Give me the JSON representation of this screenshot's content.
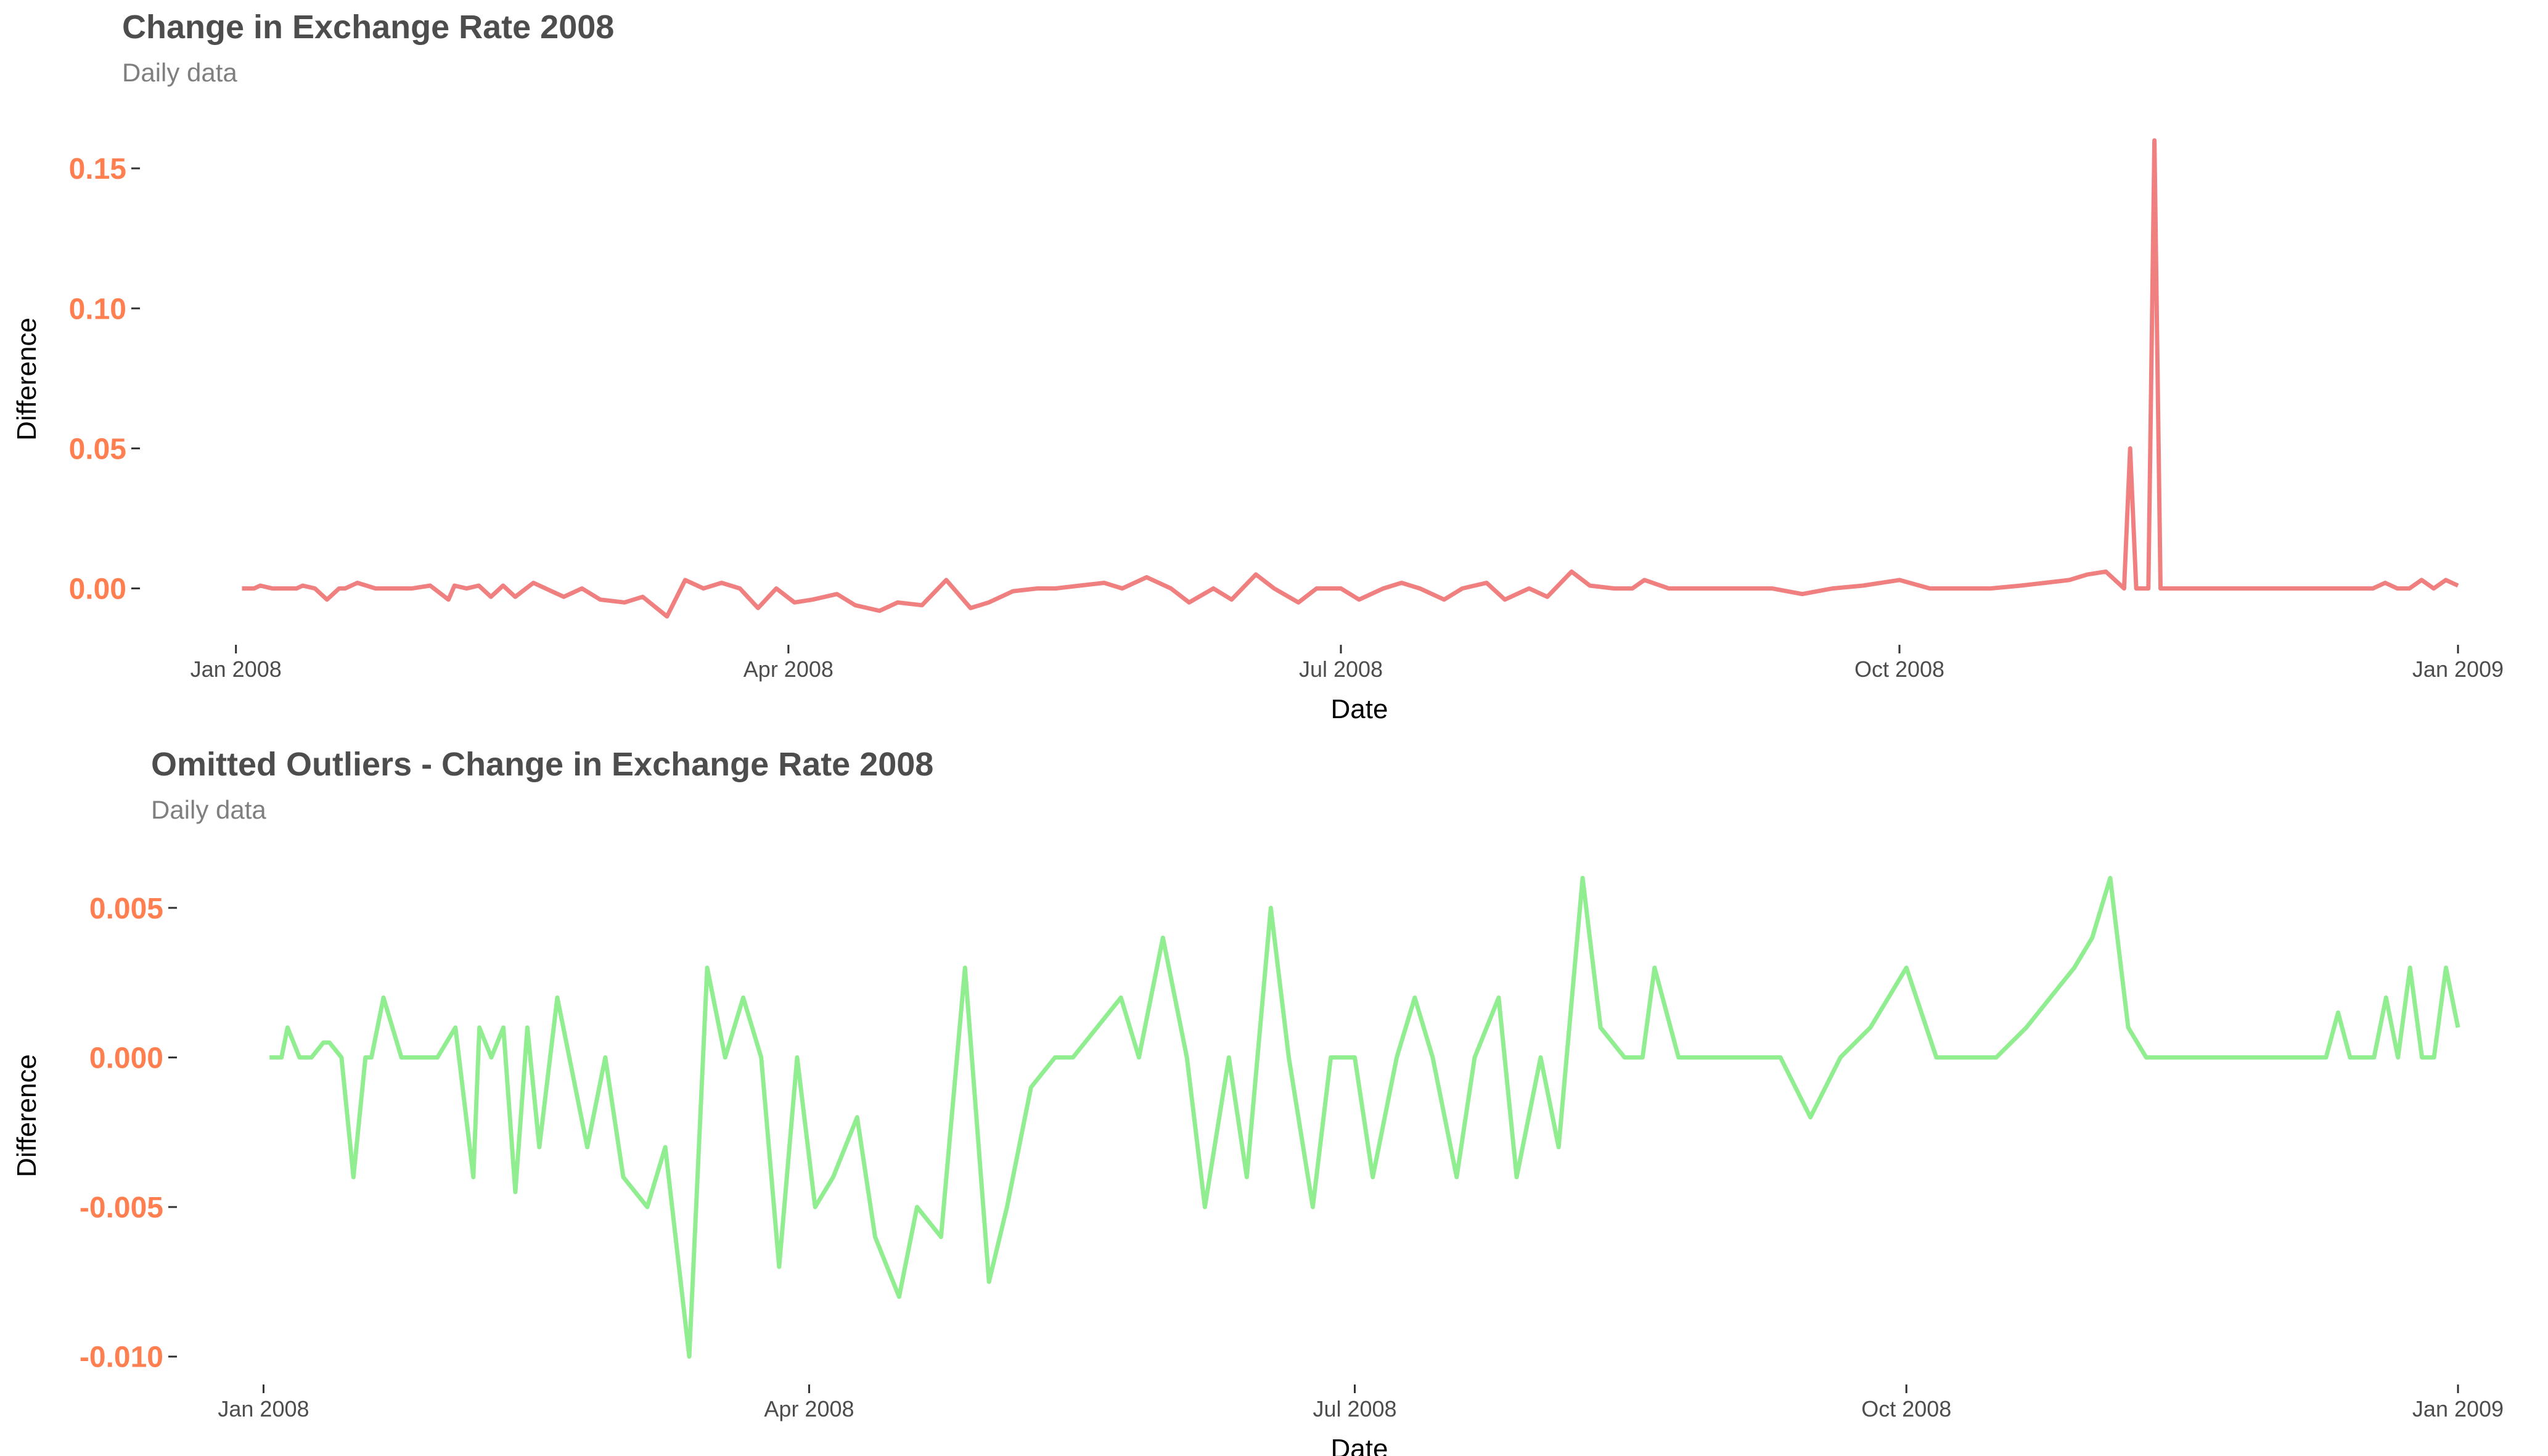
{
  "colors": {
    "tick_label": "#ff7f50",
    "series_top": "#f08080",
    "series_bottom": "#90ee90"
  },
  "chart_data": [
    {
      "type": "line",
      "title": "Change in Exchange Rate 2008",
      "subtitle": "Daily data",
      "xlabel": "Date",
      "ylabel": "Difference",
      "xlim": [
        "2007-12-30",
        "2009-01-01"
      ],
      "ylim": [
        -0.01,
        0.165
      ],
      "yticks": [
        0.0,
        0.05,
        0.1,
        0.15
      ],
      "ytick_labels": [
        "0.00",
        "0.05",
        "0.10",
        "0.15"
      ],
      "xticks": [
        "2008-01-01",
        "2008-04-01",
        "2008-07-01",
        "2008-10-01",
        "2009-01-01"
      ],
      "xtick_labels": [
        "Jan 2008",
        "Apr 2008",
        "Jul 2008",
        "Oct 2008",
        "Jan 2009"
      ],
      "grid": false,
      "series": [
        {
          "x": [
            "2008-01-02",
            "2008-01-04",
            "2008-01-05",
            "2008-01-07",
            "2008-01-09",
            "2008-01-11",
            "2008-01-12",
            "2008-01-14",
            "2008-01-16",
            "2008-01-18",
            "2008-01-19",
            "2008-01-21",
            "2008-01-24",
            "2008-01-27",
            "2008-01-30",
            "2008-02-02",
            "2008-02-05",
            "2008-02-06",
            "2008-02-08",
            "2008-02-10",
            "2008-02-12",
            "2008-02-14",
            "2008-02-16",
            "2008-02-19",
            "2008-02-21",
            "2008-02-24",
            "2008-02-27",
            "2008-03-01",
            "2008-03-05",
            "2008-03-08",
            "2008-03-12",
            "2008-03-15",
            "2008-03-18",
            "2008-03-21",
            "2008-03-24",
            "2008-03-27",
            "2008-03-30",
            "2008-04-02",
            "2008-04-05",
            "2008-04-09",
            "2008-04-12",
            "2008-04-16",
            "2008-04-19",
            "2008-04-23",
            "2008-04-27",
            "2008-05-01",
            "2008-05-04",
            "2008-05-08",
            "2008-05-12",
            "2008-05-15",
            "2008-05-19",
            "2008-05-23",
            "2008-05-26",
            "2008-05-30",
            "2008-06-03",
            "2008-06-06",
            "2008-06-10",
            "2008-06-13",
            "2008-06-17",
            "2008-06-20",
            "2008-06-24",
            "2008-06-27",
            "2008-07-01",
            "2008-07-04",
            "2008-07-08",
            "2008-07-11",
            "2008-07-14",
            "2008-07-18",
            "2008-07-21",
            "2008-07-25",
            "2008-07-28",
            "2008-08-01",
            "2008-08-04",
            "2008-08-08",
            "2008-08-11",
            "2008-08-15",
            "2008-08-18",
            "2008-08-20",
            "2008-08-24",
            "2008-08-28",
            "2008-09-01",
            "2008-09-05",
            "2008-09-10",
            "2008-09-15",
            "2008-09-20",
            "2008-09-25",
            "2008-10-01",
            "2008-10-06",
            "2008-10-11",
            "2008-10-16",
            "2008-10-21",
            "2008-10-25",
            "2008-10-29",
            "2008-11-01",
            "2008-11-04",
            "2008-11-07",
            "2008-11-08",
            "2008-11-09",
            "2008-11-10",
            "2008-11-11",
            "2008-11-12",
            "2008-11-13",
            "2008-11-14",
            "2008-11-15",
            "2008-11-20",
            "2008-11-30",
            "2008-12-10",
            "2008-12-12",
            "2008-12-14",
            "2008-12-18",
            "2008-12-20",
            "2008-12-22",
            "2008-12-24",
            "2008-12-26",
            "2008-12-28",
            "2008-12-30",
            "2009-01-01"
          ],
          "y": [
            0.0,
            0.0,
            0.001,
            0.0,
            0.0,
            0.0,
            0.001,
            0.0,
            -0.004,
            0.0,
            0.0,
            0.002,
            0.0,
            0.0,
            0.0,
            0.001,
            -0.004,
            0.001,
            0.0,
            0.001,
            -0.003,
            0.001,
            -0.003,
            0.002,
            0.0,
            -0.003,
            0.0,
            -0.004,
            -0.005,
            -0.003,
            -0.01,
            0.003,
            0.0,
            0.002,
            0.0,
            -0.007,
            0.0,
            -0.005,
            -0.004,
            -0.002,
            -0.006,
            -0.008,
            -0.005,
            -0.006,
            0.003,
            -0.007,
            -0.005,
            -0.001,
            0.0,
            0.0,
            0.001,
            0.002,
            0.0,
            0.004,
            0.0,
            -0.005,
            0.0,
            -0.004,
            0.005,
            0.0,
            -0.005,
            0.0,
            0.0,
            -0.004,
            0.0,
            0.002,
            0.0,
            -0.004,
            0.0,
            0.002,
            -0.004,
            0.0,
            -0.003,
            0.006,
            0.001,
            0.0,
            0.0,
            0.003,
            0.0,
            0.0,
            0.0,
            0.0,
            0.0,
            -0.002,
            0.0,
            0.001,
            0.003,
            0.0,
            0.0,
            0.0,
            0.001,
            0.002,
            0.003,
            0.005,
            0.006,
            0.0,
            0.05,
            0.0,
            0.0,
            0.0,
            0.16,
            0.0,
            0.0,
            0.0,
            0.0,
            0.0,
            0.0,
            0.0,
            0.0,
            0.0,
            0.002,
            0.0,
            0.0,
            0.003,
            0.0,
            0.003,
            0.001
          ]
        }
      ]
    },
    {
      "type": "line",
      "title": "Omitted Outliers - Change in Exchange Rate 2008",
      "subtitle": "Daily data",
      "xlabel": "Date",
      "ylabel": "Difference",
      "xlim": [
        "2007-12-30",
        "2009-01-01"
      ],
      "ylim": [
        -0.0105,
        0.0065
      ],
      "yticks": [
        -0.01,
        -0.005,
        0.0,
        0.005
      ],
      "ytick_labels": [
        "-0.010",
        "-0.005",
        "0.000",
        "0.005"
      ],
      "xticks": [
        "2008-01-01",
        "2008-04-01",
        "2008-07-01",
        "2008-10-01",
        "2009-01-01"
      ],
      "xtick_labels": [
        "Jan 2008",
        "Apr 2008",
        "Jul 2008",
        "Oct 2008",
        "Jan 2009"
      ],
      "grid": false,
      "series": [
        {
          "x": [
            "2008-01-02",
            "2008-01-04",
            "2008-01-05",
            "2008-01-07",
            "2008-01-09",
            "2008-01-11",
            "2008-01-12",
            "2008-01-14",
            "2008-01-16",
            "2008-01-18",
            "2008-01-19",
            "2008-01-21",
            "2008-01-24",
            "2008-01-27",
            "2008-01-30",
            "2008-02-02",
            "2008-02-05",
            "2008-02-06",
            "2008-02-08",
            "2008-02-10",
            "2008-02-12",
            "2008-02-14",
            "2008-02-16",
            "2008-02-19",
            "2008-02-21",
            "2008-02-24",
            "2008-02-27",
            "2008-03-01",
            "2008-03-05",
            "2008-03-08",
            "2008-03-12",
            "2008-03-15",
            "2008-03-18",
            "2008-03-21",
            "2008-03-24",
            "2008-03-27",
            "2008-03-30",
            "2008-04-02",
            "2008-04-05",
            "2008-04-09",
            "2008-04-12",
            "2008-04-16",
            "2008-04-19",
            "2008-04-23",
            "2008-04-27",
            "2008-05-01",
            "2008-05-04",
            "2008-05-08",
            "2008-05-12",
            "2008-05-15",
            "2008-05-19",
            "2008-05-23",
            "2008-05-26",
            "2008-05-30",
            "2008-06-03",
            "2008-06-06",
            "2008-06-10",
            "2008-06-13",
            "2008-06-17",
            "2008-06-20",
            "2008-06-24",
            "2008-06-27",
            "2008-07-01",
            "2008-07-04",
            "2008-07-08",
            "2008-07-11",
            "2008-07-14",
            "2008-07-18",
            "2008-07-21",
            "2008-07-25",
            "2008-07-28",
            "2008-08-01",
            "2008-08-04",
            "2008-08-08",
            "2008-08-11",
            "2008-08-15",
            "2008-08-18",
            "2008-08-20",
            "2008-08-24",
            "2008-08-28",
            "2008-09-01",
            "2008-09-05",
            "2008-09-10",
            "2008-09-15",
            "2008-09-20",
            "2008-09-25",
            "2008-10-01",
            "2008-10-06",
            "2008-10-11",
            "2008-10-16",
            "2008-10-21",
            "2008-10-25",
            "2008-10-29",
            "2008-11-01",
            "2008-11-04",
            "2008-11-07",
            "2008-11-10",
            "2008-11-15",
            "2008-11-20",
            "2008-11-30",
            "2008-12-10",
            "2008-12-12",
            "2008-12-14",
            "2008-12-18",
            "2008-12-20",
            "2008-12-22",
            "2008-12-24",
            "2008-12-26",
            "2008-12-28",
            "2008-12-30",
            "2009-01-01"
          ],
          "y": [
            0.0,
            0.0,
            0.001,
            0.0,
            0.0,
            0.0005,
            0.0005,
            0.0,
            -0.004,
            0.0,
            0.0,
            0.002,
            0.0,
            0.0,
            0.0,
            0.001,
            -0.004,
            0.001,
            0.0,
            0.001,
            -0.0045,
            0.001,
            -0.003,
            0.002,
            0.0,
            -0.003,
            0.0,
            -0.004,
            -0.005,
            -0.003,
            -0.01,
            0.003,
            0.0,
            0.002,
            0.0,
            -0.007,
            0.0,
            -0.005,
            -0.004,
            -0.002,
            -0.006,
            -0.008,
            -0.005,
            -0.006,
            0.003,
            -0.0075,
            -0.005,
            -0.001,
            0.0,
            0.0,
            0.001,
            0.002,
            0.0,
            0.004,
            0.0,
            -0.005,
            0.0,
            -0.004,
            0.005,
            0.0,
            -0.005,
            0.0,
            0.0,
            -0.004,
            0.0,
            0.002,
            0.0,
            -0.004,
            0.0,
            0.002,
            -0.004,
            0.0,
            -0.003,
            0.006,
            0.001,
            0.0,
            0.0,
            0.003,
            0.0,
            0.0,
            0.0,
            0.0,
            0.0,
            -0.002,
            0.0,
            0.001,
            0.003,
            0.0,
            0.0,
            0.0,
            0.001,
            0.002,
            0.003,
            0.004,
            0.006,
            0.001,
            0.0,
            0.0,
            0.0,
            0.0,
            0.0,
            0.0015,
            0.0,
            0.0,
            0.002,
            0.0,
            0.003,
            0.0,
            0.0,
            0.003,
            0.001
          ]
        }
      ]
    }
  ]
}
